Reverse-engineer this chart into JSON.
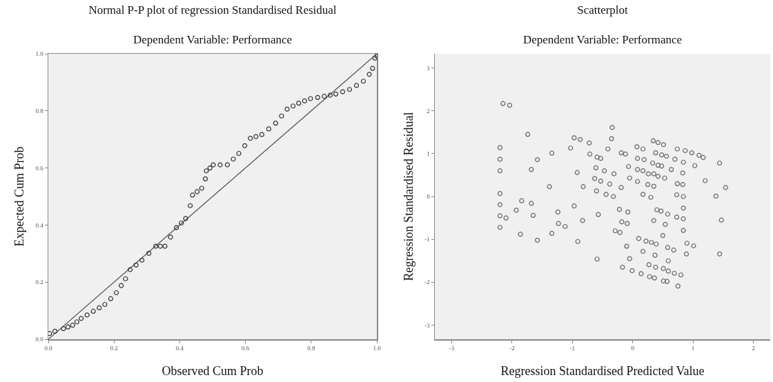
{
  "chart_data": [
    {
      "type": "scatter",
      "title": "Normal P-P plot of regression Standardised Residual",
      "subtitle": "Dependent Variable: Performance",
      "xlabel": "Observed Cum Prob",
      "ylabel": "Expected Cum Prob",
      "xlim": [
        0,
        1
      ],
      "ylim": [
        0,
        1
      ],
      "xticks": [
        {
          "value": 0,
          "label": "0.0"
        },
        {
          "value": 0.2,
          "label": "0.2"
        },
        {
          "value": 0.4,
          "label": "0.4"
        },
        {
          "value": 0.6,
          "label": "0.6"
        },
        {
          "value": 0.8,
          "label": "0.8"
        },
        {
          "value": 1,
          "label": "1.0"
        }
      ],
      "yticks": [
        {
          "value": 0,
          "label": "0.0"
        },
        {
          "value": 0.2,
          "label": "0.2"
        },
        {
          "value": 0.4,
          "label": "0.4"
        },
        {
          "value": 0.6,
          "label": "0.6"
        },
        {
          "value": 0.8,
          "label": "0.8"
        },
        {
          "value": 1,
          "label": "1.0"
        }
      ],
      "grid": false,
      "marker": "circle",
      "series": [
        {
          "type": "line",
          "color": "#555555",
          "marker": "none",
          "x": [
            0,
            1
          ],
          "values": [
            0,
            1
          ]
        },
        {
          "type": "scatter",
          "color": "#333333",
          "x": [
            0.004,
            0.02,
            0.046,
            0.06,
            0.074,
            0.087,
            0.1,
            0.118,
            0.137,
            0.155,
            0.172,
            0.19,
            0.207,
            0.222,
            0.235,
            0.249,
            0.267,
            0.285,
            0.306,
            0.327,
            0.341,
            0.355,
            0.372,
            0.39,
            0.405,
            0.418,
            0.432,
            0.439,
            0.453,
            0.467,
            0.478,
            0.481,
            0.492,
            0.502,
            0.523,
            0.545,
            0.563,
            0.58,
            0.598,
            0.615,
            0.632,
            0.65,
            0.671,
            0.692,
            0.71,
            0.727,
            0.745,
            0.762,
            0.78,
            0.798,
            0.82,
            0.84,
            0.858,
            0.875,
            0.896,
            0.917,
            0.938,
            0.959,
            0.977,
            0.987,
            0.994,
            1.0
          ],
          "values": [
            0.02,
            0.028,
            0.037,
            0.043,
            0.049,
            0.061,
            0.073,
            0.085,
            0.098,
            0.11,
            0.122,
            0.142,
            0.163,
            0.188,
            0.212,
            0.244,
            0.26,
            0.277,
            0.301,
            0.326,
            0.326,
            0.326,
            0.358,
            0.391,
            0.407,
            0.423,
            0.468,
            0.505,
            0.517,
            0.529,
            0.562,
            0.59,
            0.6,
            0.611,
            0.611,
            0.611,
            0.631,
            0.651,
            0.678,
            0.704,
            0.71,
            0.717,
            0.737,
            0.757,
            0.782,
            0.806,
            0.817,
            0.827,
            0.835,
            0.843,
            0.847,
            0.851,
            0.855,
            0.859,
            0.867,
            0.875,
            0.889,
            0.904,
            0.928,
            0.949,
            0.985,
            0.992
          ]
        }
      ]
    },
    {
      "type": "scatter",
      "title": "Scatterplot",
      "subtitle": "Dependent Variable: Performance",
      "xlabel": "Regression Standardised Predicted Value",
      "ylabel": "Regression Standardised Residual",
      "xlim": [
        -3.28,
        2.28
      ],
      "ylim": [
        -3.33,
        3.33
      ],
      "xticks": [
        -3,
        -2,
        -1,
        0,
        1,
        2
      ],
      "yticks": [
        -3,
        -2,
        -1,
        0,
        1,
        2,
        3
      ],
      "grid": false,
      "marker": "circle",
      "series": [
        {
          "type": "scatter",
          "color": "#666666",
          "x": [
            -2.15,
            -2.04,
            -1.74,
            -2.2,
            -2.2,
            -2.2,
            -2.2,
            -2.2,
            -2.2,
            -2.1,
            -2.2,
            -1.58,
            -1.68,
            -1.34,
            -1.38,
            -1.84,
            -1.68,
            -1.93,
            -1.65,
            -1.86,
            -1.58,
            -1.34,
            -1.24,
            -1.23,
            -1.12,
            -0.97,
            -0.83,
            -0.91,
            -0.57,
            -0.59,
            -1.03,
            -0.97,
            -0.87,
            -0.72,
            -0.92,
            -0.82,
            -0.71,
            -0.59,
            -0.53,
            -0.61,
            -0.47,
            -0.63,
            -0.53,
            -0.38,
            -0.6,
            -0.44,
            -0.32,
            -0.34,
            -0.35,
            -0.41,
            -0.31,
            -0.19,
            -0.19,
            -0.12,
            -0.07,
            -0.05,
            0.08,
            0.07,
            0.17,
            0.08,
            0.19,
            0.08,
            0.17,
            0.26,
            0.25,
            0.35,
            0.17,
            0.3,
            0.34,
            0.42,
            0.51,
            0.38,
            0.48,
            0.56,
            0.33,
            0.42,
            0.48,
            0.35,
            0.42,
            0.53,
            0.74,
            0.87,
            0.98,
            1.1,
            1.17,
            0.7,
            0.84,
            1.03,
            0.64,
            0.83,
            0.74,
            0.83,
            1.2,
            1.44,
            1.54,
            1.38,
            1.47,
            1.44,
            0.73,
            0.84,
            0.84,
            0.73,
            0.84,
            0.84,
            0.9,
            1.01,
            0.89,
            0.4,
            0.47,
            0.58,
            0.35,
            0.54,
            0.5,
            0.58,
            0.68,
            0.59,
            0.8,
            0.51,
            0.59,
            0.69,
            0.51,
            0.57,
            0.75,
            -0.22,
            -0.08,
            -0.18,
            -0.09,
            -0.29,
            -0.21,
            0.1,
            0.22,
            0.31,
            0.39,
            -0.1,
            0.17,
            0.37,
            -0.05,
            0.27,
            0.38,
            -0.17,
            -0.01,
            0.14,
            0.28,
            0.36
          ],
          "values": [
            2.17,
            2.13,
            1.45,
            1.14,
            0.87,
            0.6,
            0.07,
            -0.19,
            -0.45,
            -0.5,
            -0.72,
            0.86,
            0.63,
            1.01,
            0.23,
            -0.1,
            -0.16,
            -0.32,
            -0.44,
            -0.88,
            -1.02,
            -0.86,
            -0.36,
            -0.63,
            -0.7,
            -0.22,
            -0.56,
            -1.05,
            -0.42,
            -1.46,
            1.13,
            1.37,
            1.33,
            1.25,
            0.56,
            0.23,
            0.99,
            0.92,
            0.89,
            0.67,
            0.6,
            0.42,
            0.36,
            0.29,
            0.13,
            0.05,
            0,
            1.61,
            1.35,
            1.11,
            0.53,
            0.21,
            1.02,
            0.99,
            0.7,
            0.43,
            0.35,
            1.16,
            1.11,
            0.89,
            0.86,
            0.63,
            0.6,
            0.53,
            0.28,
            0.24,
            0.05,
            -0.02,
            1.3,
            1.26,
            1.21,
            1.02,
            0.97,
            0.94,
            0.78,
            0.73,
            0.71,
            0.53,
            0.47,
            0.43,
            1.11,
            1.07,
            1.02,
            0.96,
            0.91,
            0.87,
            0.8,
            0.72,
            0.63,
            0.55,
            0.3,
            0.28,
            0.37,
            0.78,
            0.21,
            0.01,
            -0.55,
            -1.34,
            0.04,
            0,
            -0.27,
            -0.48,
            -0.52,
            -0.79,
            -1.09,
            -1.15,
            -1.34,
            -0.31,
            -0.34,
            -0.41,
            -0.56,
            -0.65,
            -0.91,
            -1.19,
            -1.25,
            -1.5,
            -1.83,
            -1.68,
            -1.74,
            -1.79,
            -1.97,
            -1.98,
            -2.09,
            -0.3,
            -0.36,
            -0.59,
            -0.63,
            -0.8,
            -0.84,
            -0.98,
            -1.04,
            -1.07,
            -1.11,
            -1.16,
            -1.28,
            -1.37,
            -1.45,
            -1.59,
            -1.65,
            -1.65,
            -1.73,
            -1.8,
            -1.87,
            -1.9
          ]
        }
      ]
    }
  ]
}
